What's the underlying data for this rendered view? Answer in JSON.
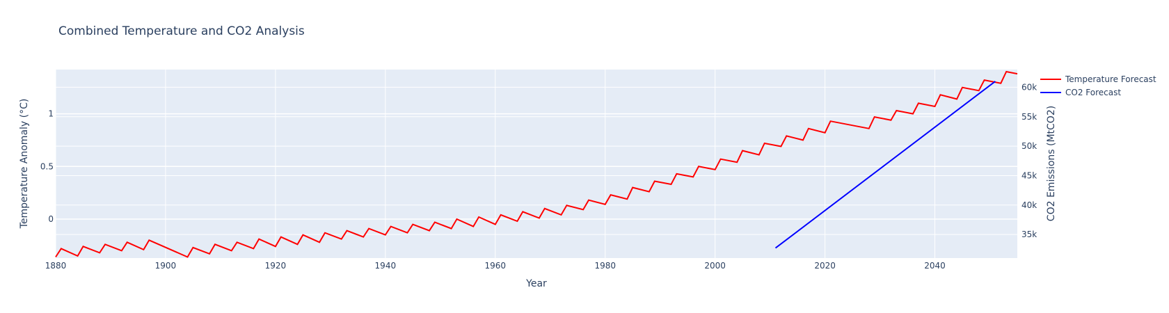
{
  "chart_data": {
    "type": "line",
    "title": "Combined Temperature and CO2 Analysis",
    "xlabel": "Year",
    "ylabel": "Temperature Anomaly (°C)",
    "y2label": "CO2 Emissions (MtCO2)",
    "xlim": [
      1880,
      2055
    ],
    "ylim": [
      -0.37,
      1.42
    ],
    "y2lim": [
      31000,
      63000
    ],
    "x_ticks": [
      1880,
      1900,
      1920,
      1940,
      1960,
      1980,
      2000,
      2020,
      2040
    ],
    "x_tick_labels": [
      "1880",
      "1900",
      "1920",
      "1940",
      "1960",
      "1980",
      "2000",
      "2020",
      "2040"
    ],
    "y_ticks": [
      0,
      0.5,
      1
    ],
    "y_tick_labels": [
      "0",
      "0.5",
      "1"
    ],
    "y2_ticks": [
      35000,
      40000,
      45000,
      50000,
      55000,
      60000
    ],
    "y2_tick_labels": [
      "35k",
      "40k",
      "45k",
      "50k",
      "55k",
      "60k"
    ],
    "grid": true,
    "legend_position": "top-right",
    "colors": {
      "plot_bg": "#e5ecf6",
      "grid": "#ffffff",
      "temp": "#ff0000",
      "co2": "#0000ff"
    },
    "series": [
      {
        "name": "Temperature Forecast",
        "axis": "y",
        "x": [
          1880,
          1881,
          1884,
          1885,
          1888,
          1889,
          1892,
          1893,
          1896,
          1897,
          1904,
          1905,
          1908,
          1909,
          1912,
          1913,
          1916,
          1917,
          1920,
          1921,
          1924,
          1925,
          1928,
          1929,
          1932,
          1933,
          1936,
          1937,
          1940,
          1941,
          1944,
          1945,
          1948,
          1949,
          1952,
          1953,
          1956,
          1957,
          1960,
          1961,
          1964,
          1965,
          1968,
          1969,
          1972,
          1973,
          1976,
          1977,
          1980,
          1981,
          1984,
          1985,
          1988,
          1989,
          1992,
          1993,
          1996,
          1997,
          2000,
          2001,
          2004,
          2005,
          2008,
          2009,
          2012,
          2013,
          2016,
          2017,
          2020,
          2021,
          2028,
          2029,
          2032,
          2033,
          2036,
          2037,
          2040,
          2041,
          2044,
          2045,
          2048,
          2049,
          2052,
          2053,
          2055
        ],
        "values": [
          -0.36,
          -0.28,
          -0.35,
          -0.26,
          -0.32,
          -0.24,
          -0.3,
          -0.22,
          -0.29,
          -0.2,
          -0.36,
          -0.27,
          -0.33,
          -0.24,
          -0.3,
          -0.22,
          -0.28,
          -0.19,
          -0.26,
          -0.17,
          -0.24,
          -0.15,
          -0.22,
          -0.13,
          -0.19,
          -0.11,
          -0.17,
          -0.09,
          -0.15,
          -0.07,
          -0.13,
          -0.05,
          -0.11,
          -0.03,
          -0.09,
          0.0,
          -0.07,
          0.02,
          -0.05,
          0.04,
          -0.02,
          0.07,
          0.01,
          0.1,
          0.04,
          0.13,
          0.09,
          0.18,
          0.14,
          0.23,
          0.19,
          0.3,
          0.26,
          0.36,
          0.33,
          0.43,
          0.4,
          0.5,
          0.47,
          0.57,
          0.54,
          0.65,
          0.61,
          0.72,
          0.69,
          0.79,
          0.75,
          0.86,
          0.82,
          0.93,
          0.86,
          0.97,
          0.94,
          1.03,
          1.0,
          1.1,
          1.07,
          1.18,
          1.14,
          1.25,
          1.22,
          1.32,
          1.29,
          1.4,
          1.38
        ]
      },
      {
        "name": "CO2 Forecast",
        "axis": "y2",
        "x": [
          2011,
          2051
        ],
        "values": [
          32700,
          61000
        ]
      }
    ]
  }
}
